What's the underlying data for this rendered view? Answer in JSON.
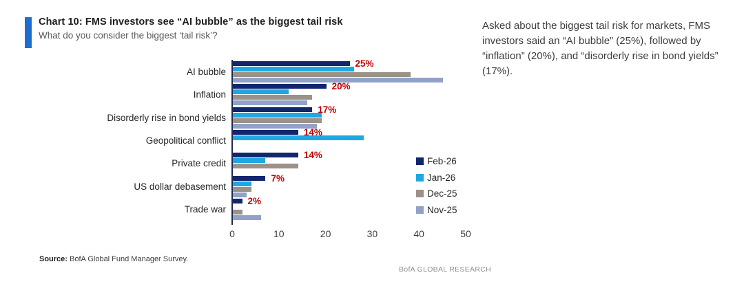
{
  "header": {
    "title": "Chart 10: FMS investors see “AI bubble” as the biggest tail risk",
    "subtitle": "What do you consider the biggest ‘tail risk’?"
  },
  "annotation": {
    "text": "Asked about the biggest tail risk for markets, FMS investors said an “AI bubble” (25%), followed by “inflation” (20%), and “disorderly rise in bond yields” (17%)."
  },
  "chart_data": {
    "type": "bar",
    "orientation": "horizontal",
    "title": "Chart 10: FMS investors see “AI bubble” as the biggest tail risk",
    "xlabel": "",
    "ylabel": "",
    "categories": [
      "AI bubble",
      "Inflation",
      "Disorderly rise in bond yields",
      "Geopolitical conflict",
      "Private credit",
      "US dollar debasement",
      "Trade war"
    ],
    "series": [
      {
        "name": "Feb-26",
        "color": "#12266e",
        "values": [
          25,
          20,
          17,
          14,
          14,
          7,
          2
        ]
      },
      {
        "name": "Jan-26",
        "color": "#1ea7e0",
        "values": [
          26,
          12,
          19,
          28,
          7,
          4,
          0
        ]
      },
      {
        "name": "Dec-25",
        "color": "#9c9187",
        "values": [
          38,
          17,
          19,
          0,
          14,
          4,
          2
        ]
      },
      {
        "name": "Nov-25",
        "color": "#91a1c7",
        "values": [
          45,
          16,
          18,
          0,
          0,
          3,
          6
        ]
      }
    ],
    "data_labels": [
      "25%",
      "20%",
      "17%",
      "14%",
      "14%",
      "7%",
      "2%"
    ],
    "data_label_color": "#c00000",
    "xlim": [
      0,
      50
    ],
    "x_ticks": [
      0,
      10,
      20,
      30,
      40,
      50
    ],
    "grid": false,
    "legend_position": "middle-right"
  },
  "footer": {
    "source_label": "Source:",
    "source_text": "BofA Global Fund Manager Survey.",
    "brand": "BofA GLOBAL RESEARCH"
  }
}
